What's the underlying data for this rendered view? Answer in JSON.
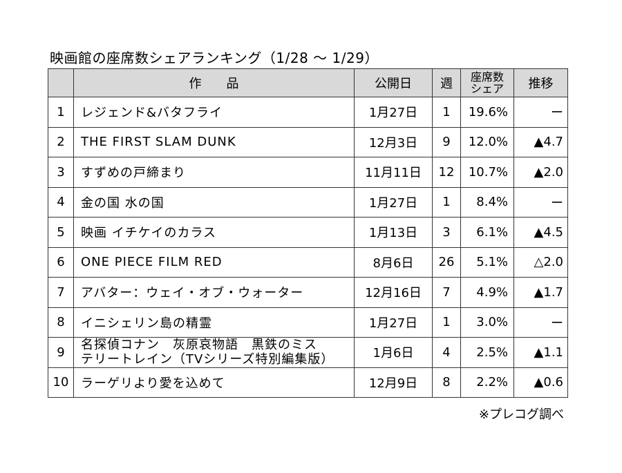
{
  "title": "映画館の座席数シェアランキング（1/28 〜 1/29）",
  "headers": {
    "rank": "",
    "work": "作　　品",
    "release": "公開日",
    "weeks": "週",
    "seat_share_line1": "座席数",
    "seat_share_line2": "シェア",
    "trend": "推移"
  },
  "rows": [
    {
      "rank": "1",
      "work": "レジェンド&バタフライ",
      "work2": "",
      "release": "1月27日",
      "weeks": "1",
      "share": "19.6%",
      "trend": "ー"
    },
    {
      "rank": "2",
      "work": "THE FIRST SLAM DUNK",
      "work2": "",
      "release": "12月3日",
      "weeks": "9",
      "share": "12.0%",
      "trend": "▲4.7"
    },
    {
      "rank": "3",
      "work": "すずめの戸締まり",
      "work2": "",
      "release": "11月11日",
      "weeks": "12",
      "share": "10.7%",
      "trend": "▲2.0"
    },
    {
      "rank": "4",
      "work": "金の国 水の国",
      "work2": "",
      "release": "1月27日",
      "weeks": "1",
      "share": "8.4%",
      "trend": "ー"
    },
    {
      "rank": "5",
      "work": "映画 イチケイのカラス",
      "work2": "",
      "release": "1月13日",
      "weeks": "3",
      "share": "6.1%",
      "trend": "▲4.5"
    },
    {
      "rank": "6",
      "work": "ONE PIECE FILM RED",
      "work2": "",
      "release": "8月6日",
      "weeks": "26",
      "share": "5.1%",
      "trend": "△2.0"
    },
    {
      "rank": "7",
      "work": "アバター：ウェイ・オブ・ウォーター",
      "work2": "",
      "release": "12月16日",
      "weeks": "7",
      "share": "4.9%",
      "trend": "▲1.7"
    },
    {
      "rank": "8",
      "work": "イニシェリン島の精霊",
      "work2": "",
      "release": "1月27日",
      "weeks": "1",
      "share": "3.0%",
      "trend": "ー"
    },
    {
      "rank": "9",
      "work": "名探偵コナン　灰原哀物語　黒鉄のミス",
      "work2": "テリートレイン（TVシリーズ特別編集版）",
      "release": "1月6日",
      "weeks": "4",
      "share": "2.5%",
      "trend": "▲1.1"
    },
    {
      "rank": "10",
      "work": "ラーゲリより愛を込めて",
      "work2": "",
      "release": "12月9日",
      "weeks": "8",
      "share": "2.2%",
      "trend": "▲0.6"
    }
  ],
  "source": "※プレコグ調べ"
}
